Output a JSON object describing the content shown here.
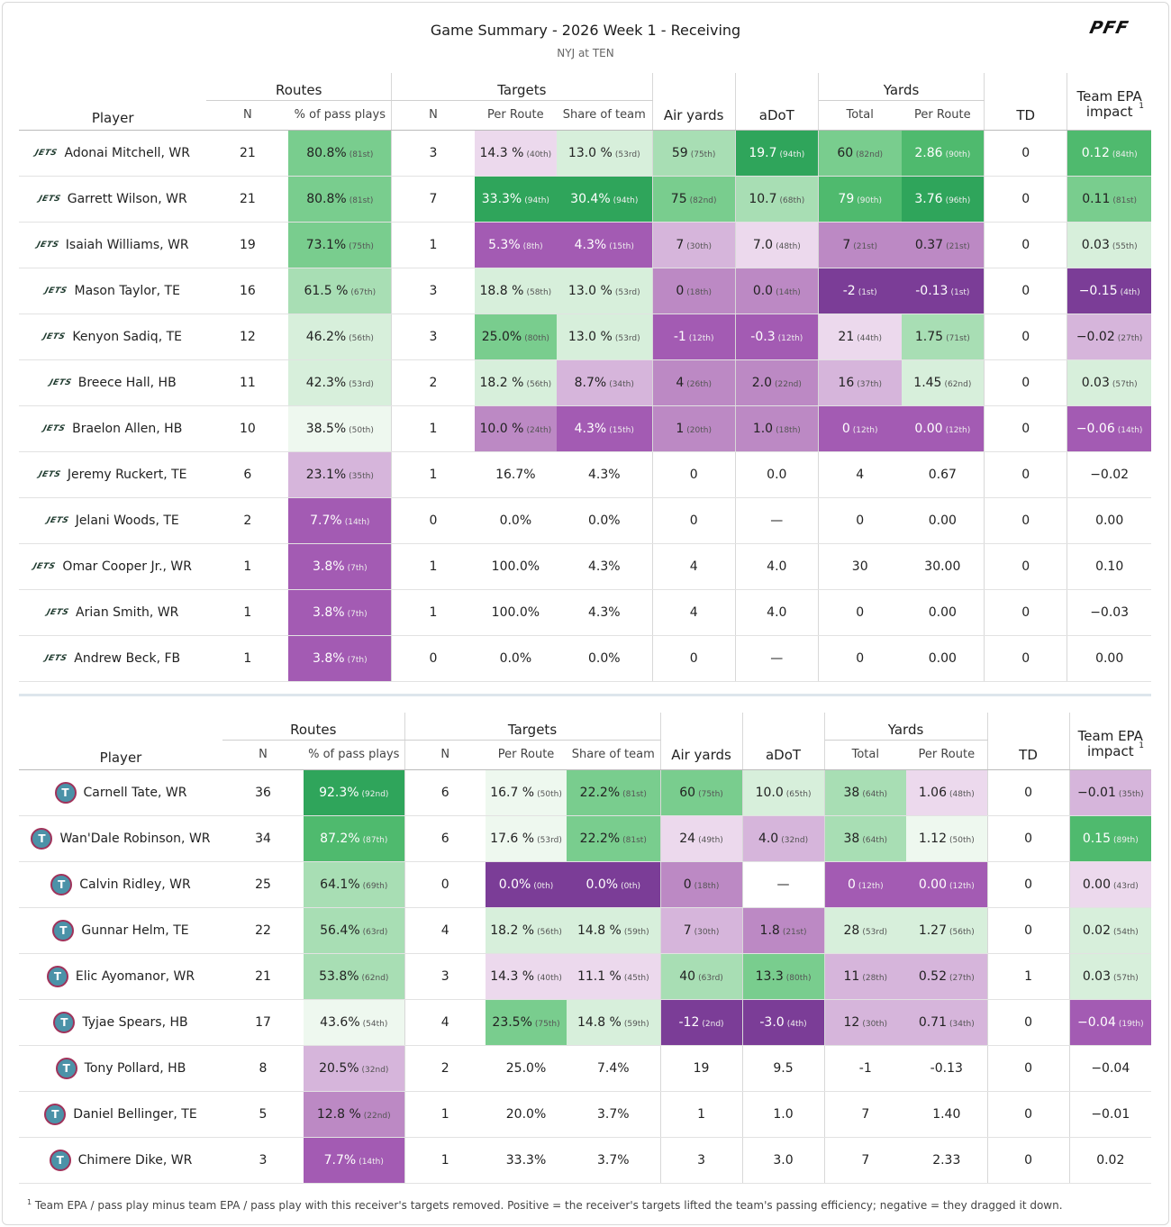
{
  "header": {
    "title": "Game Summary - 2026 Week 1 - Receiving",
    "subtitle": "NYJ at TEN",
    "logo": "PFF"
  },
  "columns": {
    "routes": "Routes",
    "targets": "Targets",
    "yards": "Yards",
    "player": "Player",
    "n": "N",
    "pct_pass": "% of pass plays",
    "per_route": "Per Route",
    "share": "Share of team",
    "air": "Air yards",
    "adot": "aDoT",
    "total": "Total",
    "td": "TD",
    "epa": "Team EPA impact",
    "epa_note": "1"
  },
  "colors": {
    "g5": "#2fa55b",
    "g4": "#4fba6e",
    "g3": "#79cd8e",
    "g2": "#a8deb4",
    "g1": "#d7efdb",
    "p1": "#ecd9ed",
    "p2": "#d6b5db",
    "p3": "#bc89c4",
    "p4": "#a35bb3",
    "p5": "#7b3d97"
  },
  "teams": [
    {
      "id": "away",
      "icon": "jets-logo",
      "rows": [
        {
          "player": "Adonai Mitchell, WR",
          "rn": "21",
          "rp": [
            "80.8%",
            "81st",
            "g3"
          ],
          "tn": "3",
          "tpr": [
            "14.3 %",
            "40th",
            "p1"
          ],
          "ts": [
            "13.0 %",
            "53rd",
            "g1"
          ],
          "air": [
            "59",
            "75th",
            "g2"
          ],
          "adot": [
            "19.7",
            "94th",
            "g5"
          ],
          "yt": [
            "60",
            "82nd",
            "g3"
          ],
          "ypr": [
            "2.86",
            "90th",
            "g4"
          ],
          "td": "0",
          "epa": [
            "0.12",
            "84th",
            "g4"
          ]
        },
        {
          "player": "Garrett Wilson, WR",
          "rn": "21",
          "rp": [
            "80.8%",
            "81st",
            "g3"
          ],
          "tn": "7",
          "tpr": [
            "33.3%",
            "94th",
            "g5"
          ],
          "ts": [
            "30.4%",
            "94th",
            "g5"
          ],
          "air": [
            "75",
            "82nd",
            "g3"
          ],
          "adot": [
            "10.7",
            "68th",
            "g2"
          ],
          "yt": [
            "79",
            "90th",
            "g4"
          ],
          "ypr": [
            "3.76",
            "96th",
            "g5"
          ],
          "td": "0",
          "epa": [
            "0.11",
            "81st",
            "g3"
          ]
        },
        {
          "player": "Isaiah Williams, WR",
          "rn": "19",
          "rp": [
            "73.1%",
            "75th",
            "g3"
          ],
          "tn": "1",
          "tpr": [
            "5.3%",
            "8th",
            "p4"
          ],
          "ts": [
            "4.3%",
            "15th",
            "p4"
          ],
          "air": [
            "7",
            "30th",
            "p2"
          ],
          "adot": [
            "7.0",
            "48th",
            "p1"
          ],
          "yt": [
            "7",
            "21st",
            "p3"
          ],
          "ypr": [
            "0.37",
            "21st",
            "p3"
          ],
          "td": "0",
          "epa": [
            "0.03",
            "55th",
            "g1"
          ]
        },
        {
          "player": "Mason Taylor, TE",
          "rn": "16",
          "rp": [
            "61.5 %",
            "67th",
            "g2"
          ],
          "tn": "3",
          "tpr": [
            "18.8 %",
            "58th",
            "g1"
          ],
          "ts": [
            "13.0 %",
            "53rd",
            "g1"
          ],
          "air": [
            "0",
            "18th",
            "p3"
          ],
          "adot": [
            "0.0",
            "14th",
            "p3"
          ],
          "yt": [
            "-2",
            "1st",
            "p5"
          ],
          "ypr": [
            "-0.13",
            "1st",
            "p5"
          ],
          "td": "0",
          "epa": [
            "−0.15",
            "4th",
            "p5"
          ]
        },
        {
          "player": "Kenyon Sadiq, TE",
          "rn": "12",
          "rp": [
            "46.2%",
            "56th",
            "g1"
          ],
          "tn": "3",
          "tpr": [
            "25.0%",
            "80th",
            "g3"
          ],
          "ts": [
            "13.0 %",
            "53rd",
            "g1"
          ],
          "air": [
            "-1",
            "12th",
            "p4"
          ],
          "adot": [
            "-0.3",
            "12th",
            "p4"
          ],
          "yt": [
            "21",
            "44th",
            "p1"
          ],
          "ypr": [
            "1.75",
            "71st",
            "g2"
          ],
          "td": "0",
          "epa": [
            "−0.02",
            "27th",
            "p2"
          ]
        },
        {
          "player": "Breece Hall, HB",
          "rn": "11",
          "rp": [
            "42.3%",
            "53rd",
            "g1"
          ],
          "tn": "2",
          "tpr": [
            "18.2 %",
            "56th",
            "g1"
          ],
          "ts": [
            "8.7%",
            "34th",
            "p2"
          ],
          "air": [
            "4",
            "26th",
            "p3"
          ],
          "adot": [
            "2.0",
            "22nd",
            "p3"
          ],
          "yt": [
            "16",
            "37th",
            "p2"
          ],
          "ypr": [
            "1.45",
            "62nd",
            "g1"
          ],
          "td": "0",
          "epa": [
            "0.03",
            "57th",
            "g1"
          ]
        },
        {
          "player": "Braelon Allen, HB",
          "rn": "10",
          "rp": [
            "38.5%",
            "50th",
            "g0"
          ],
          "tn": "1",
          "tpr": [
            "10.0 %",
            "24th",
            "p3"
          ],
          "ts": [
            "4.3%",
            "15th",
            "p4"
          ],
          "air": [
            "1",
            "20th",
            "p3"
          ],
          "adot": [
            "1.0",
            "18th",
            "p3"
          ],
          "yt": [
            "0",
            "12th",
            "p4"
          ],
          "ypr": [
            "0.00",
            "12th",
            "p4"
          ],
          "td": "0",
          "epa": [
            "−0.06",
            "14th",
            "p4"
          ]
        },
        {
          "player": "Jeremy Ruckert, TE",
          "rn": "6",
          "rp": [
            "23.1%",
            "35th",
            "p2"
          ],
          "tn": "1",
          "tpr": [
            "16.7%",
            "",
            ""
          ],
          "ts": [
            "4.3%",
            "",
            ""
          ],
          "air": [
            "0",
            "",
            ""
          ],
          "adot": [
            "0.0",
            "",
            ""
          ],
          "yt": [
            "4",
            "",
            ""
          ],
          "ypr": [
            "0.67",
            "",
            ""
          ],
          "td": "0",
          "epa": [
            "−0.02",
            "",
            ""
          ]
        },
        {
          "player": "Jelani Woods, TE",
          "rn": "2",
          "rp": [
            "7.7%",
            "14th",
            "p4"
          ],
          "tn": "0",
          "tpr": [
            "0.0%",
            "",
            ""
          ],
          "ts": [
            "0.0%",
            "",
            ""
          ],
          "air": [
            "0",
            "",
            ""
          ],
          "adot": [
            "—",
            "",
            ""
          ],
          "yt": [
            "0",
            "",
            ""
          ],
          "ypr": [
            "0.00",
            "",
            ""
          ],
          "td": "0",
          "epa": [
            "0.00",
            "",
            ""
          ]
        },
        {
          "player": "Omar Cooper Jr., WR",
          "rn": "1",
          "rp": [
            "3.8%",
            "7th",
            "p4"
          ],
          "tn": "1",
          "tpr": [
            "100.0%",
            "",
            ""
          ],
          "ts": [
            "4.3%",
            "",
            ""
          ],
          "air": [
            "4",
            "",
            ""
          ],
          "adot": [
            "4.0",
            "",
            ""
          ],
          "yt": [
            "30",
            "",
            ""
          ],
          "ypr": [
            "30.00",
            "",
            ""
          ],
          "td": "0",
          "epa": [
            "0.10",
            "",
            ""
          ]
        },
        {
          "player": "Arian Smith, WR",
          "rn": "1",
          "rp": [
            "3.8%",
            "7th",
            "p4"
          ],
          "tn": "1",
          "tpr": [
            "100.0%",
            "",
            ""
          ],
          "ts": [
            "4.3%",
            "",
            ""
          ],
          "air": [
            "4",
            "",
            ""
          ],
          "adot": [
            "4.0",
            "",
            ""
          ],
          "yt": [
            "0",
            "",
            ""
          ],
          "ypr": [
            "0.00",
            "",
            ""
          ],
          "td": "0",
          "epa": [
            "−0.03",
            "",
            ""
          ]
        },
        {
          "player": "Andrew Beck, FB",
          "rn": "1",
          "rp": [
            "3.8%",
            "7th",
            "p4"
          ],
          "tn": "0",
          "tpr": [
            "0.0%",
            "",
            ""
          ],
          "ts": [
            "0.0%",
            "",
            ""
          ],
          "air": [
            "0",
            "",
            ""
          ],
          "adot": [
            "—",
            "",
            ""
          ],
          "yt": [
            "0",
            "",
            ""
          ],
          "ypr": [
            "0.00",
            "",
            ""
          ],
          "td": "0",
          "epa": [
            "0.00",
            "",
            ""
          ]
        }
      ]
    },
    {
      "id": "home",
      "icon": "titans-logo",
      "rows": [
        {
          "player": "Carnell Tate, WR",
          "rn": "36",
          "rp": [
            "92.3%",
            "92nd",
            "g5"
          ],
          "tn": "6",
          "tpr": [
            "16.7 %",
            "50th",
            "g0"
          ],
          "ts": [
            "22.2%",
            "81st",
            "g3"
          ],
          "air": [
            "60",
            "75th",
            "g3"
          ],
          "adot": [
            "10.0",
            "65th",
            "g1"
          ],
          "yt": [
            "38",
            "64th",
            "g2"
          ],
          "ypr": [
            "1.06",
            "48th",
            "p1"
          ],
          "td": "0",
          "epa": [
            "−0.01",
            "35th",
            "p2"
          ]
        },
        {
          "player": "Wan'Dale Robinson, WR",
          "rn": "34",
          "rp": [
            "87.2%",
            "87th",
            "g4"
          ],
          "tn": "6",
          "tpr": [
            "17.6 %",
            "53rd",
            "g0"
          ],
          "ts": [
            "22.2%",
            "81st",
            "g3"
          ],
          "air": [
            "24",
            "49th",
            "p1"
          ],
          "adot": [
            "4.0",
            "32nd",
            "p2"
          ],
          "yt": [
            "38",
            "64th",
            "g2"
          ],
          "ypr": [
            "1.12",
            "50th",
            "g0"
          ],
          "td": "0",
          "epa": [
            "0.15",
            "89th",
            "g4"
          ]
        },
        {
          "player": "Calvin Ridley, WR",
          "rn": "25",
          "rp": [
            "64.1%",
            "69th",
            "g2"
          ],
          "tn": "0",
          "tpr": [
            "0.0%",
            "0th",
            "p5"
          ],
          "ts": [
            "0.0%",
            "0th",
            "p5"
          ],
          "air": [
            "0",
            "18th",
            "p3"
          ],
          "adot": [
            "—",
            "",
            ""
          ],
          "yt": [
            "0",
            "12th",
            "p4"
          ],
          "ypr": [
            "0.00",
            "12th",
            "p4"
          ],
          "td": "0",
          "epa": [
            "0.00",
            "43rd",
            "p1"
          ]
        },
        {
          "player": "Gunnar Helm, TE",
          "rn": "22",
          "rp": [
            "56.4%",
            "63rd",
            "g2"
          ],
          "tn": "4",
          "tpr": [
            "18.2 %",
            "56th",
            "g1"
          ],
          "ts": [
            "14.8 %",
            "59th",
            "g1"
          ],
          "air": [
            "7",
            "30th",
            "p2"
          ],
          "adot": [
            "1.8",
            "21st",
            "p3"
          ],
          "yt": [
            "28",
            "53rd",
            "g1"
          ],
          "ypr": [
            "1.27",
            "56th",
            "g1"
          ],
          "td": "0",
          "epa": [
            "0.02",
            "54th",
            "g1"
          ]
        },
        {
          "player": "Elic Ayomanor, WR",
          "rn": "21",
          "rp": [
            "53.8%",
            "62nd",
            "g2"
          ],
          "tn": "3",
          "tpr": [
            "14.3 %",
            "40th",
            "p1"
          ],
          "ts": [
            "11.1 %",
            "45th",
            "p1"
          ],
          "air": [
            "40",
            "63rd",
            "g2"
          ],
          "adot": [
            "13.3",
            "80th",
            "g3"
          ],
          "yt": [
            "11",
            "28th",
            "p2"
          ],
          "ypr": [
            "0.52",
            "27th",
            "p2"
          ],
          "td": "1",
          "epa": [
            "0.03",
            "57th",
            "g1"
          ]
        },
        {
          "player": "Tyjae Spears, HB",
          "rn": "17",
          "rp": [
            "43.6%",
            "54th",
            "g0"
          ],
          "tn": "4",
          "tpr": [
            "23.5%",
            "75th",
            "g3"
          ],
          "ts": [
            "14.8 %",
            "59th",
            "g1"
          ],
          "air": [
            "-12",
            "2nd",
            "p5"
          ],
          "adot": [
            "-3.0",
            "4th",
            "p5"
          ],
          "yt": [
            "12",
            "30th",
            "p2"
          ],
          "ypr": [
            "0.71",
            "34th",
            "p2"
          ],
          "td": "0",
          "epa": [
            "−0.04",
            "19th",
            "p4"
          ]
        },
        {
          "player": "Tony Pollard, HB",
          "rn": "8",
          "rp": [
            "20.5%",
            "32nd",
            "p2"
          ],
          "tn": "2",
          "tpr": [
            "25.0%",
            "",
            ""
          ],
          "ts": [
            "7.4%",
            "",
            ""
          ],
          "air": [
            "19",
            "",
            ""
          ],
          "adot": [
            "9.5",
            "",
            ""
          ],
          "yt": [
            "-1",
            "",
            ""
          ],
          "ypr": [
            "-0.13",
            "",
            ""
          ],
          "td": "0",
          "epa": [
            "−0.04",
            "",
            ""
          ]
        },
        {
          "player": "Daniel Bellinger, TE",
          "rn": "5",
          "rp": [
            "12.8 %",
            "22nd",
            "p3"
          ],
          "tn": "1",
          "tpr": [
            "20.0%",
            "",
            ""
          ],
          "ts": [
            "3.7%",
            "",
            ""
          ],
          "air": [
            "1",
            "",
            ""
          ],
          "adot": [
            "1.0",
            "",
            ""
          ],
          "yt": [
            "7",
            "",
            ""
          ],
          "ypr": [
            "1.40",
            "",
            ""
          ],
          "td": "0",
          "epa": [
            "−0.01",
            "",
            ""
          ]
        },
        {
          "player": "Chimere Dike, WR",
          "rn": "3",
          "rp": [
            "7.7%",
            "14th",
            "p4"
          ],
          "tn": "1",
          "tpr": [
            "33.3%",
            "",
            ""
          ],
          "ts": [
            "3.7%",
            "",
            ""
          ],
          "air": [
            "3",
            "",
            ""
          ],
          "adot": [
            "3.0",
            "",
            ""
          ],
          "yt": [
            "7",
            "",
            ""
          ],
          "ypr": [
            "2.33",
            "",
            ""
          ],
          "td": "0",
          "epa": [
            "0.02",
            "",
            ""
          ]
        }
      ]
    }
  ],
  "footnote": {
    "mark": "1",
    "text": "Team EPA / pass play minus team EPA / pass play with this receiver's targets removed. Positive = the receiver's targets lifted the team's passing efficiency; negative = they dragged it down."
  }
}
